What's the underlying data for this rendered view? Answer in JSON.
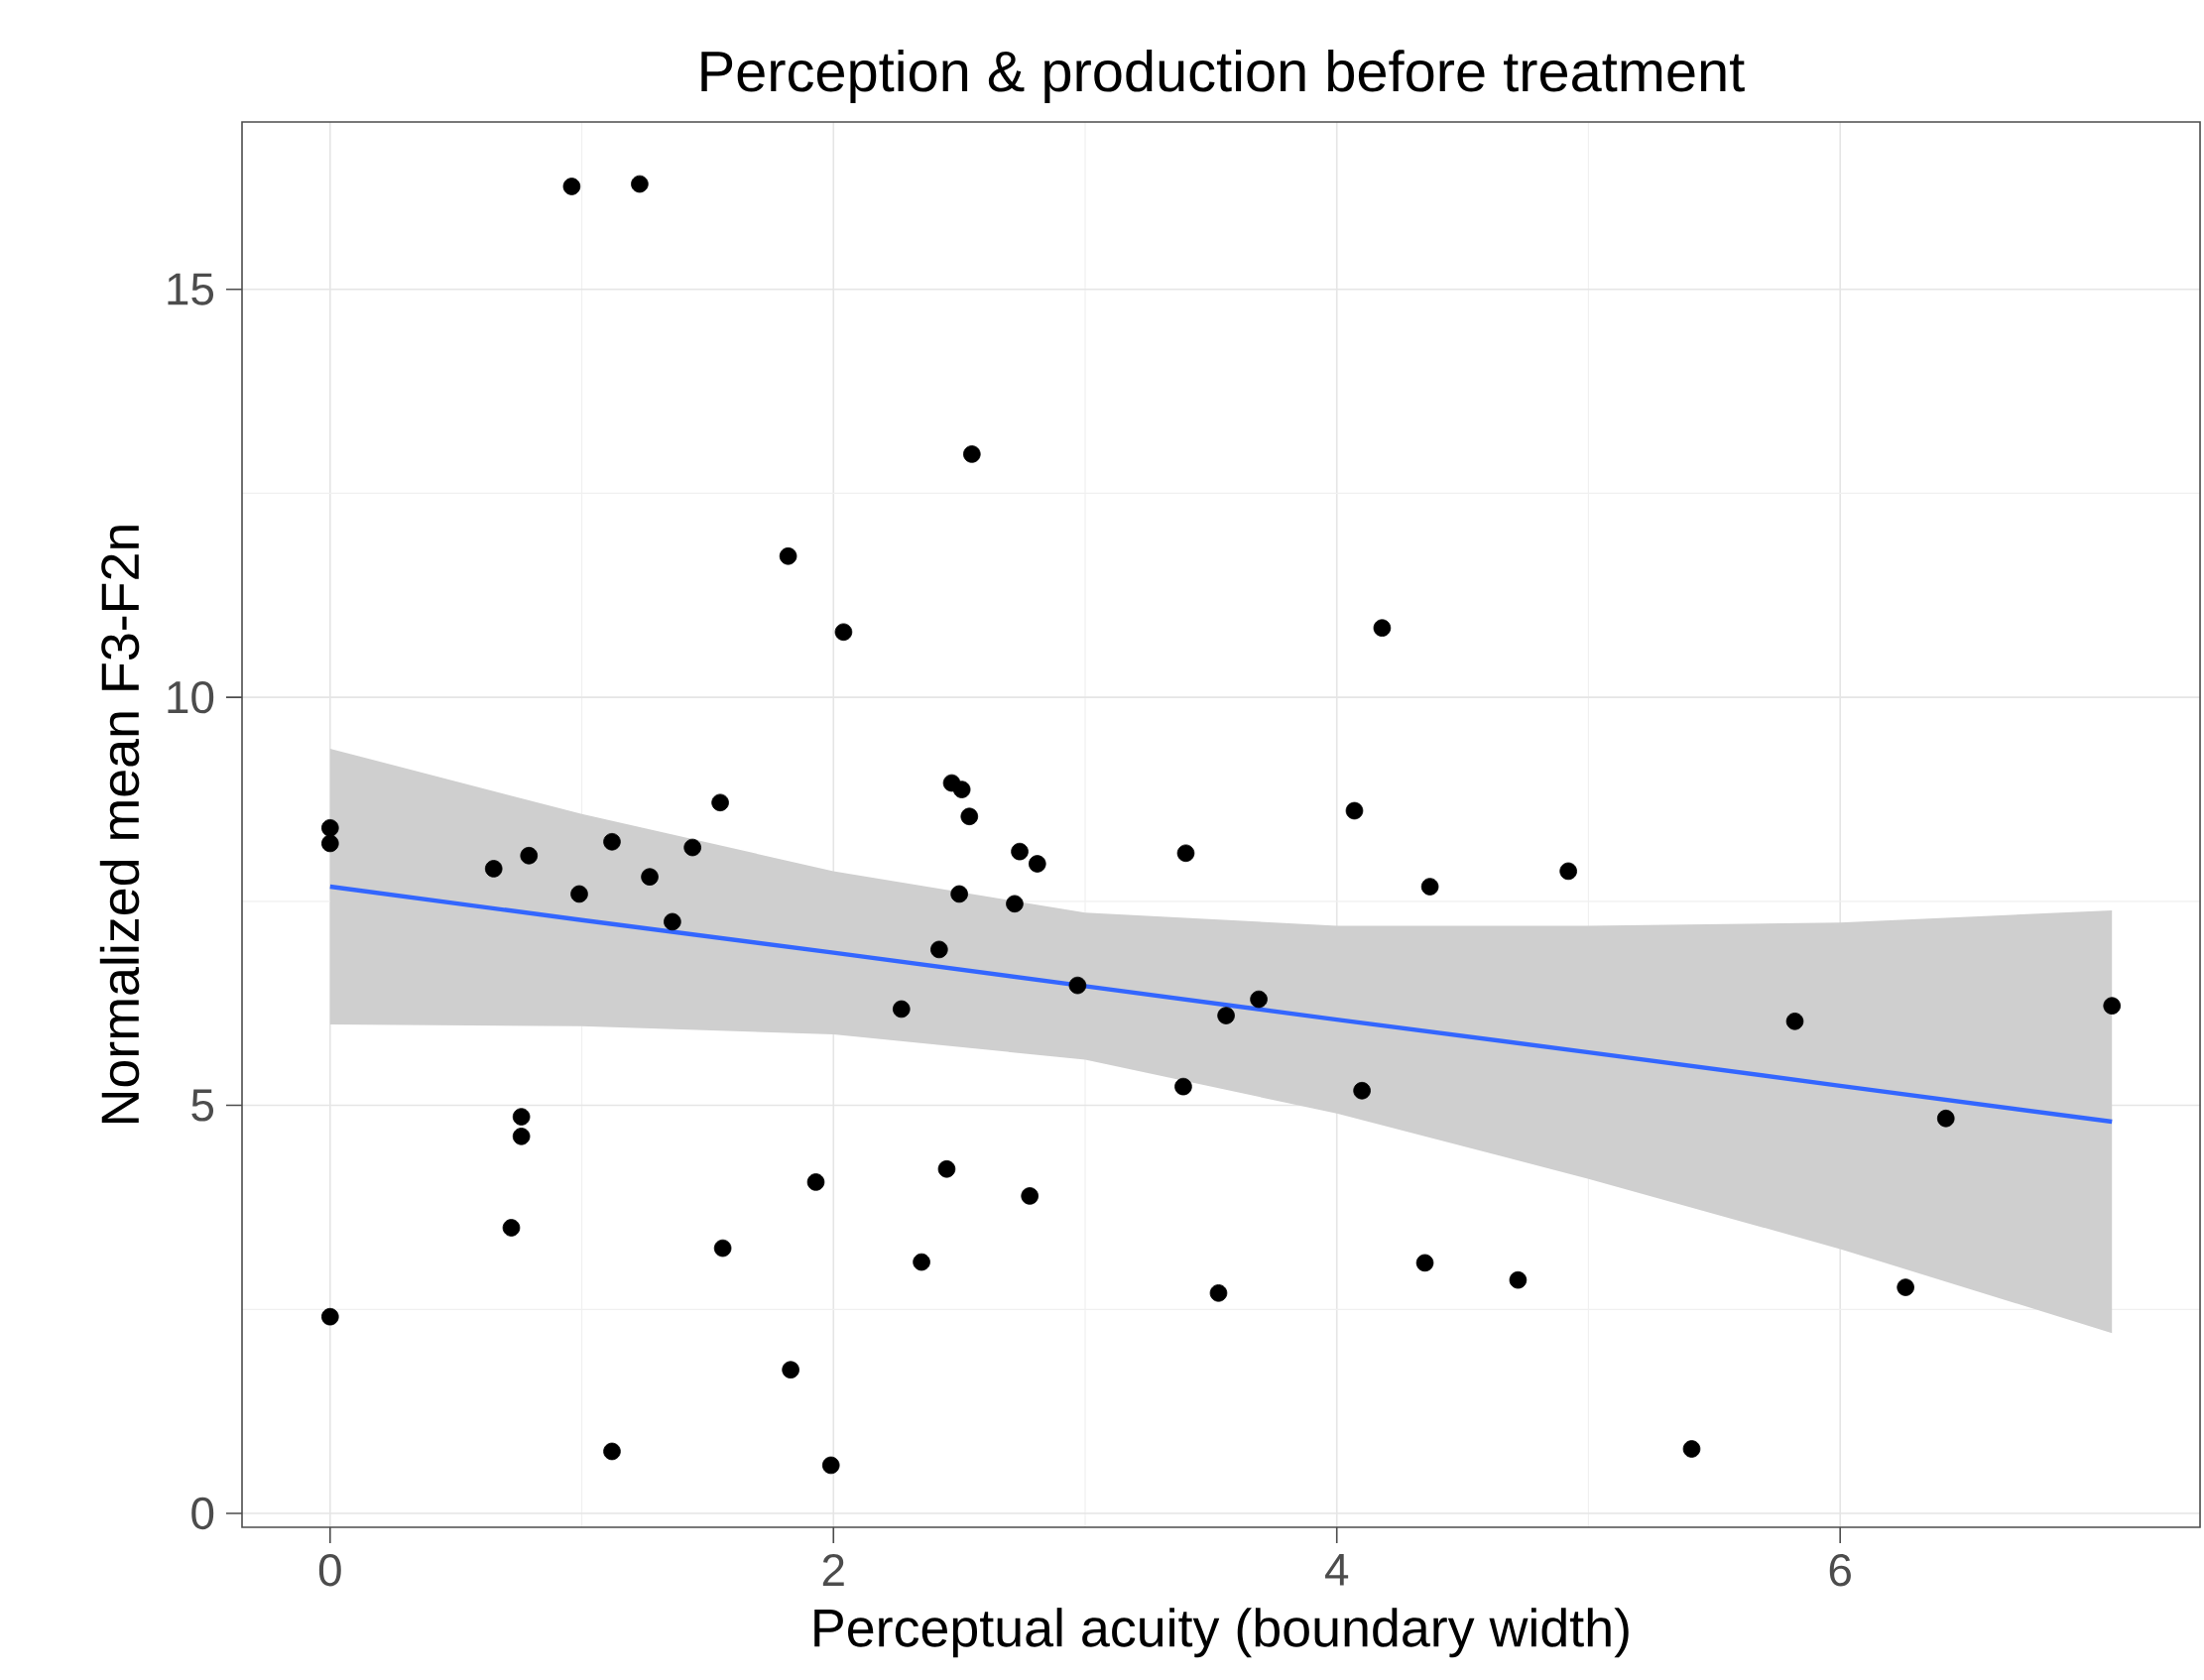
{
  "chart_data": {
    "type": "scatter",
    "title": "Perception & production before treatment",
    "xlabel": "Perceptual acuity (boundary width)",
    "ylabel": "Normalized mean F3-F2n",
    "xlim": [
      -0.35,
      7.43
    ],
    "ylim": [
      -0.17,
      17.05
    ],
    "xticks": [
      0,
      2,
      4,
      6
    ],
    "yticks": [
      0,
      5,
      10,
      15
    ],
    "grid": true,
    "series": [
      {
        "color": "#000000",
        "marker": "circle",
        "x": [
          0,
          0,
          0,
          0.65,
          0.79,
          0.76,
          0.76,
          0.72,
          0.96,
          1.23,
          0.99,
          1.12,
          1.12,
          1.27,
          1.36,
          1.44,
          1.55,
          1.56,
          1.82,
          1.83,
          1.93,
          1.99,
          2.04,
          2.27,
          2.35,
          2.42,
          2.45,
          2.47,
          2.51,
          2.5,
          2.54,
          2.55,
          2.72,
          2.74,
          2.81,
          2.78,
          2.97,
          3.39,
          3.4,
          3.53,
          3.56,
          3.69,
          4.07,
          4.1,
          4.18,
          4.35,
          4.37,
          4.72,
          4.92,
          5.41,
          5.82,
          6.26,
          6.42,
          7.08
        ],
        "values": [
          8.4,
          8.21,
          2.41,
          7.9,
          8.06,
          4.86,
          4.62,
          3.5,
          16.26,
          16.29,
          7.59,
          8.23,
          0.76,
          7.8,
          7.25,
          8.16,
          8.71,
          3.25,
          11.73,
          1.76,
          4.06,
          0.59,
          10.8,
          6.18,
          3.08,
          6.91,
          4.22,
          8.95,
          8.87,
          7.59,
          8.54,
          12.98,
          7.47,
          8.11,
          7.96,
          3.89,
          6.47,
          5.23,
          8.09,
          2.7,
          6.1,
          6.3,
          8.61,
          5.18,
          10.85,
          3.07,
          7.68,
          2.86,
          7.87,
          0.79,
          6.03,
          2.77,
          4.84,
          6.22
        ]
      },
      {
        "type": "line",
        "color": "#3366ff",
        "marker": "none",
        "x": [
          0,
          1,
          2,
          3,
          4,
          5,
          6,
          7.08
        ],
        "values": [
          7.68,
          7.27,
          6.87,
          6.46,
          6.05,
          5.65,
          5.24,
          4.8
        ],
        "lower": [
          5.99,
          5.97,
          5.87,
          5.56,
          4.9,
          4.1,
          3.24,
          2.21
        ],
        "upper": [
          9.37,
          8.57,
          7.87,
          7.36,
          7.2,
          7.2,
          7.24,
          7.39
        ]
      }
    ]
  }
}
